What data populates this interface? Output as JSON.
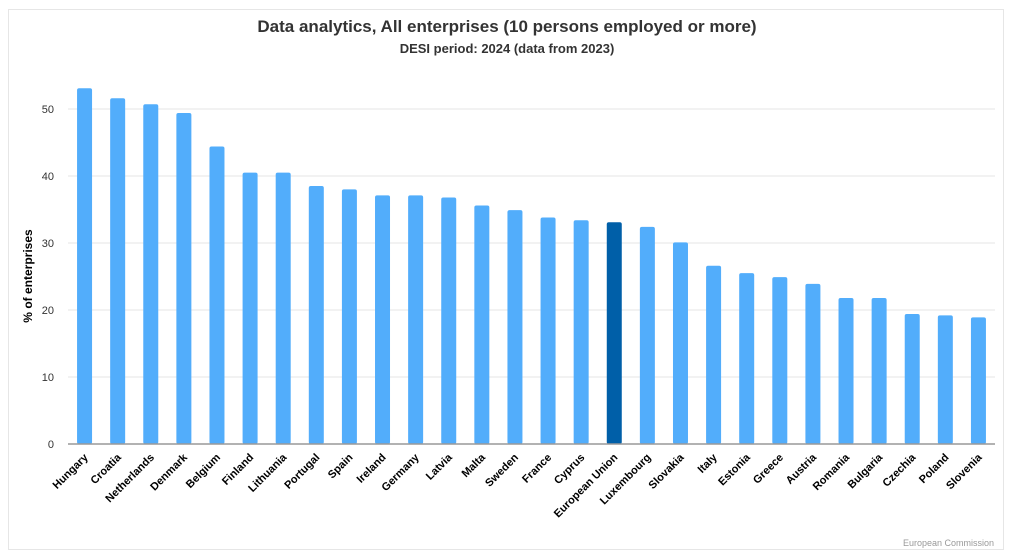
{
  "chart_data": {
    "type": "bar",
    "title": "Data analytics, All enterprises (10 persons employed or more)",
    "subtitle": "DESI period: 2024 (data from 2023)",
    "xlabel": "",
    "ylabel": "% of enterprises",
    "ylim": [
      0,
      55
    ],
    "yticks": [
      0,
      10,
      20,
      30,
      40,
      50
    ],
    "grid": true,
    "legend": "none",
    "categories": [
      "Hungary",
      "Croatia",
      "Netherlands",
      "Denmark",
      "Belgium",
      "Finland",
      "Lithuania",
      "Portugal",
      "Spain",
      "Ireland",
      "Germany",
      "Latvia",
      "Malta",
      "Sweden",
      "France",
      "Cyprus",
      "European Union",
      "Luxembourg",
      "Slovakia",
      "Italy",
      "Estonia",
      "Greece",
      "Austria",
      "Romania",
      "Bulgaria",
      "Czechia",
      "Poland",
      "Slovenia"
    ],
    "values": [
      53.1,
      51.6,
      50.7,
      49.4,
      44.4,
      40.5,
      40.5,
      38.5,
      38.0,
      37.1,
      37.1,
      36.8,
      35.6,
      34.9,
      33.8,
      33.4,
      33.1,
      32.4,
      30.1,
      26.6,
      25.5,
      24.9,
      23.9,
      21.8,
      21.8,
      19.4,
      19.2,
      18.9
    ],
    "highlight": "European Union",
    "colors": {
      "bar": "#52adfb",
      "highlight": "#005fa8",
      "grid": "#e6e6e6",
      "axis": "#999999"
    },
    "credit": "European Commission"
  }
}
